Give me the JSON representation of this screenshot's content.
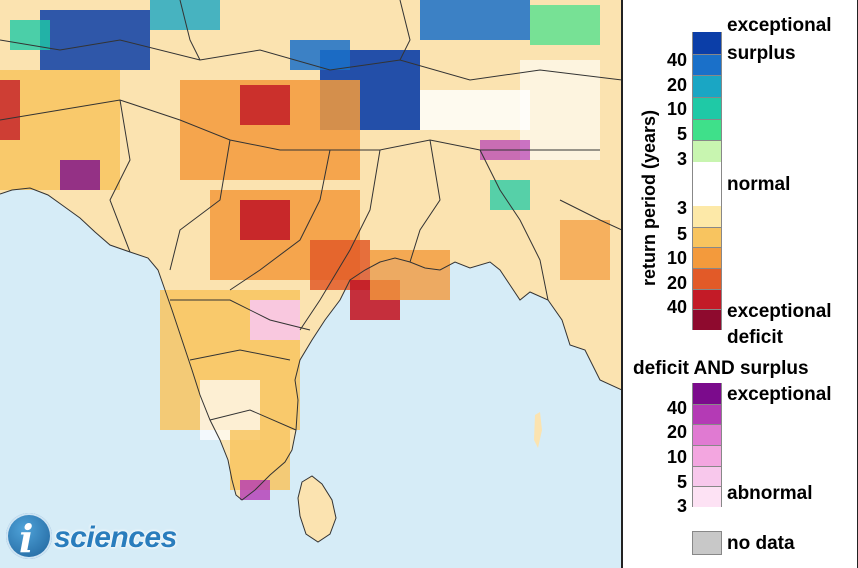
{
  "map": {
    "description_colors": {
      "land_base": "#fbe3b0",
      "water": "#d6ecf7",
      "boundary": "#333333"
    }
  },
  "logo": {
    "letter": "i",
    "word": "sciences"
  },
  "legend": {
    "axis_title": "return period (years)",
    "surplus": {
      "label_line1": "exceptional",
      "label_line2": "surplus",
      "ticks": [
        "40",
        "20",
        "10",
        "5",
        "3"
      ],
      "colors": [
        "#0b3ea8",
        "#1a70c9",
        "#1aa6c4",
        "#1fc9a6",
        "#3fe08a",
        "#c8f5b0"
      ]
    },
    "normal_label": "normal",
    "normal_color": "#ffffff",
    "deficit": {
      "ticks": [
        "3",
        "5",
        "10",
        "20",
        "40"
      ],
      "label_line1": "exceptional",
      "label_line2": "deficit",
      "colors": [
        "#fde9a8",
        "#f8c45f",
        "#f39a3c",
        "#e25a28",
        "#c31b27",
        "#8e0a2e"
      ]
    },
    "both": {
      "title": "deficit AND surplus",
      "label_top": "exceptional",
      "label_bottom": "abnormal",
      "ticks": [
        "40",
        "20",
        "10",
        "5",
        "3"
      ],
      "colors": [
        "#7b0b8c",
        "#b43ab5",
        "#e07ad2",
        "#f3a6e0",
        "#f8c8ec",
        "#fde2f4"
      ]
    },
    "no_data": {
      "label": "no data",
      "color": "#c8c8c8"
    }
  }
}
